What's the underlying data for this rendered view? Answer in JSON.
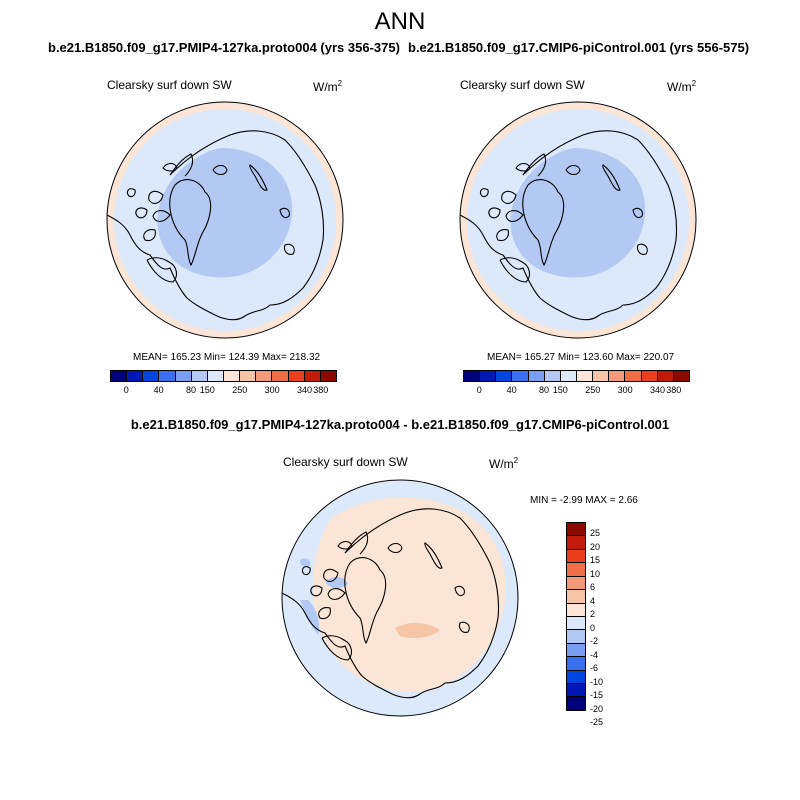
{
  "title": "ANN",
  "panels": {
    "left": {
      "case": "b.e21.B1850.f09_g17.PMIP4-127ka.proto004 (yrs 356-375)",
      "variable": "Clearsky surf down SW",
      "units_base": "W/m",
      "units_exp": "2",
      "stats": "MEAN= 165.23  Min= 124.39  Max= 218.32"
    },
    "right": {
      "case": "b.e21.B1850.f09_g17.CMIP6-piControl.001 (yrs 556-575)",
      "variable": "Clearsky surf down SW",
      "units_base": "W/m",
      "units_exp": "2",
      "stats": "MEAN= 165.27  Min= 123.60  Max= 220.07"
    },
    "diff": {
      "case": "b.e21.B1850.f09_g17.PMIP4-127ka.proto004 - b.e21.B1850.f09_g17.CMIP6-piControl.001",
      "variable": "Clearsky surf down SW",
      "units_base": "W/m",
      "units_exp": "2",
      "stats": "MIN =  -2.99 MAX =   2.66"
    }
  },
  "colorbar_abs": {
    "colors": [
      "#00007a",
      "#0019b6",
      "#0045e0",
      "#3a6ff0",
      "#7a9ff2",
      "#b3c9f3",
      "#dce9fa",
      "#fbe5d6",
      "#f6c4a7",
      "#f29a79",
      "#f06e45",
      "#ea3e1c",
      "#c21a0b",
      "#8a0a00"
    ],
    "ticks": [
      "0",
      "40",
      "80",
      "150",
      "250",
      "300",
      "340",
      "380"
    ]
  },
  "colorbar_diff": {
    "colors": [
      "#8a0a00",
      "#c21a0b",
      "#ea3e1c",
      "#f06e45",
      "#f29a79",
      "#f6c4a7",
      "#fbe5d6",
      "#dce9fa",
      "#b3c9f3",
      "#7a9ff2",
      "#3a6ff0",
      "#0045e0",
      "#0019b6",
      "#00007a"
    ],
    "ticks": [
      "25",
      "20",
      "15",
      "10",
      "6",
      "4",
      "2",
      "0",
      "-2",
      "-4",
      "-6",
      "-10",
      "-15",
      "-20",
      "-25"
    ]
  }
}
